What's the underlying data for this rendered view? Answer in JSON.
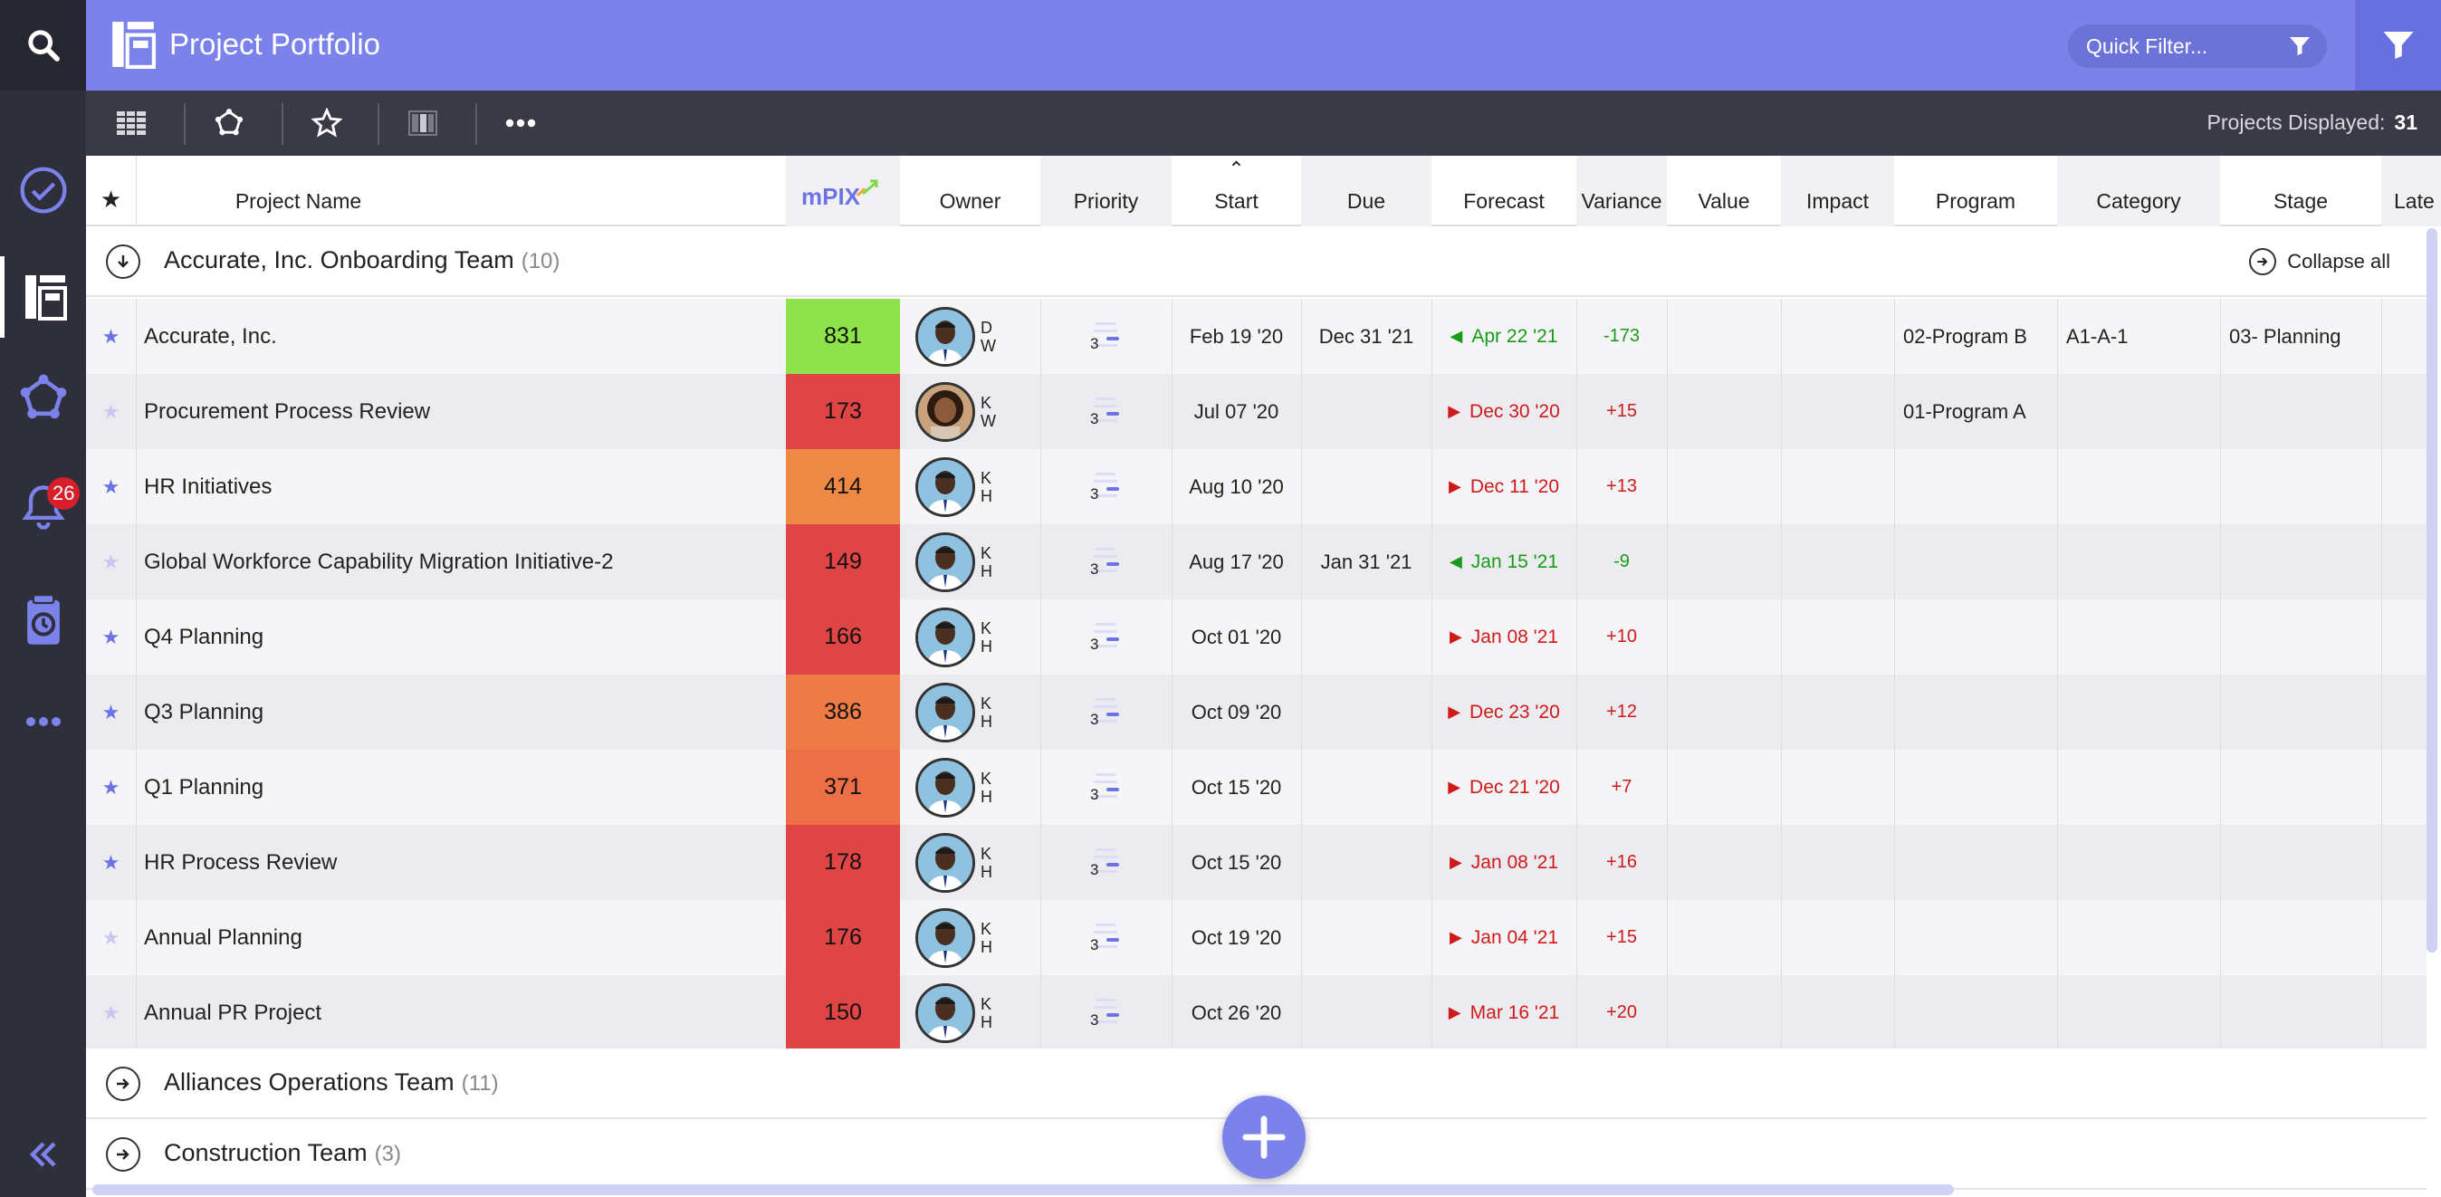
{
  "app": {
    "title": "Project Portfolio"
  },
  "header": {
    "quick_filter_placeholder": "Quick Filter...",
    "accent": "#7b83eb"
  },
  "sidebar": {
    "items": [
      {
        "icon": "search-icon"
      },
      {
        "icon": "check-circle-icon"
      },
      {
        "icon": "portfolio-icon",
        "active": true
      },
      {
        "icon": "network-icon"
      },
      {
        "icon": "bell-icon",
        "badge": "26"
      },
      {
        "icon": "timesheet-icon"
      },
      {
        "icon": "more-icon"
      },
      {
        "icon": "collapse-sidebar-icon"
      }
    ]
  },
  "toolbar": {
    "projects_displayed_label": "Projects Displayed:",
    "projects_displayed_count": "31"
  },
  "columns": {
    "star": "★",
    "name": "Project Name",
    "mpix": "mPIX",
    "owner": "Owner",
    "priority": "Priority",
    "start": "Start",
    "due": "Due",
    "forecast": "Forecast",
    "variance": "Variance",
    "value": "Value",
    "impact": "Impact",
    "program": "Program",
    "category": "Category",
    "stage": "Stage",
    "late": "Late"
  },
  "groups": [
    {
      "name": "Accurate, Inc. Onboarding Team",
      "count": "(10)",
      "expanded": true
    },
    {
      "name": "Alliances Operations Team",
      "count": "(11)",
      "expanded": false
    },
    {
      "name": "Construction Team",
      "count": "(3)",
      "expanded": false
    }
  ],
  "collapse_all_label": "Collapse all",
  "rows": [
    {
      "starred": true,
      "name": "Accurate, Inc.",
      "mpix": "831",
      "mpix_color": "#8ee34a",
      "initials": [
        "D",
        "W"
      ],
      "priority": "3",
      "start": "Feb 19 '20",
      "due": "Dec 31 '21",
      "forecast": "Apr 22 '21",
      "trend": "green",
      "variance": "-173",
      "program": "02-Program B",
      "category": "A1-A-1",
      "stage": "03- Planning"
    },
    {
      "starred": false,
      "name": "Procurement Process Review",
      "mpix": "173",
      "mpix_color": "#e04545",
      "initials": [
        "K",
        "W"
      ],
      "priority": "3",
      "start": "Jul 07 '20",
      "due": "",
      "forecast": "Dec 30 '20",
      "trend": "red",
      "variance": "+15",
      "program": "01-Program A",
      "category": "",
      "stage": ""
    },
    {
      "starred": true,
      "name": "HR Initiatives",
      "mpix": "414",
      "mpix_color": "#ee8845",
      "initials": [
        "K",
        "H"
      ],
      "priority": "3",
      "start": "Aug 10 '20",
      "due": "",
      "forecast": "Dec 11 '20",
      "trend": "red",
      "variance": "+13",
      "program": "",
      "category": "",
      "stage": ""
    },
    {
      "starred": false,
      "name": "Global Workforce Capability Migration Initiative-2",
      "mpix": "149",
      "mpix_color": "#e04545",
      "initials": [
        "K",
        "H"
      ],
      "priority": "3",
      "start": "Aug 17 '20",
      "due": "Jan 31 '21",
      "forecast": "Jan 15 '21",
      "trend": "green",
      "variance": "-9",
      "program": "",
      "category": "",
      "stage": ""
    },
    {
      "starred": true,
      "name": "Q4 Planning",
      "mpix": "166",
      "mpix_color": "#e04545",
      "initials": [
        "K",
        "H"
      ],
      "priority": "3",
      "start": "Oct 01 '20",
      "due": "",
      "forecast": "Jan 08 '21",
      "trend": "red",
      "variance": "+10",
      "program": "",
      "category": "",
      "stage": ""
    },
    {
      "starred": true,
      "name": "Q3 Planning",
      "mpix": "386",
      "mpix_color": "#ee7a45",
      "initials": [
        "K",
        "H"
      ],
      "priority": "3",
      "start": "Oct 09 '20",
      "due": "",
      "forecast": "Dec 23 '20",
      "trend": "red",
      "variance": "+12",
      "program": "",
      "category": "",
      "stage": ""
    },
    {
      "starred": true,
      "name": "Q1 Planning",
      "mpix": "371",
      "mpix_color": "#ec6f45",
      "initials": [
        "K",
        "H"
      ],
      "priority": "3",
      "start": "Oct 15 '20",
      "due": "",
      "forecast": "Dec 21 '20",
      "trend": "red",
      "variance": "+7",
      "program": "",
      "category": "",
      "stage": ""
    },
    {
      "starred": true,
      "name": "HR Process Review",
      "mpix": "178",
      "mpix_color": "#e04545",
      "initials": [
        "K",
        "H"
      ],
      "priority": "3",
      "start": "Oct 15 '20",
      "due": "",
      "forecast": "Jan 08 '21",
      "trend": "red",
      "variance": "+16",
      "program": "",
      "category": "",
      "stage": ""
    },
    {
      "starred": false,
      "name": "Annual Planning",
      "mpix": "176",
      "mpix_color": "#e04545",
      "initials": [
        "K",
        "H"
      ],
      "priority": "3",
      "start": "Oct 19 '20",
      "due": "",
      "forecast": "Jan 04 '21",
      "trend": "red",
      "variance": "+15",
      "program": "",
      "category": "",
      "stage": ""
    },
    {
      "starred": false,
      "name": "Annual PR Project",
      "mpix": "150",
      "mpix_color": "#e04545",
      "initials": [
        "K",
        "H"
      ],
      "priority": "3",
      "start": "Oct 26 '20",
      "due": "",
      "forecast": "Mar 16 '21",
      "trend": "red",
      "variance": "+20",
      "program": "",
      "category": "",
      "stage": ""
    }
  ]
}
